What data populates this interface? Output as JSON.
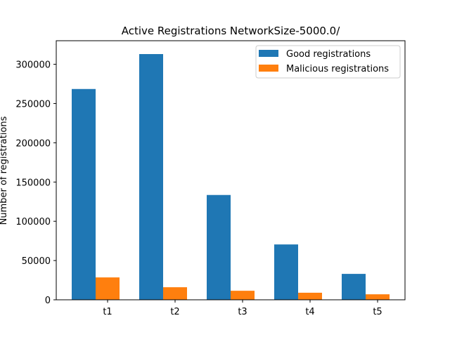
{
  "chart_data": {
    "type": "bar",
    "title": "Active Registrations NetworkSize-5000.0/",
    "xlabel": "",
    "ylabel": "Number of registrations",
    "categories": [
      "t1",
      "t2",
      "t3",
      "t4",
      "t5"
    ],
    "series": [
      {
        "name": "Good registrations",
        "color": "#1f77b4",
        "values": [
          268500,
          313000,
          133500,
          70500,
          33000
        ]
      },
      {
        "name": "Malicious registrations",
        "color": "#ff7f0e",
        "values": [
          28500,
          16000,
          11500,
          9000,
          7000
        ]
      }
    ],
    "ylim": [
      0,
      330000
    ],
    "yticks": [
      0,
      50000,
      100000,
      150000,
      200000,
      250000,
      300000
    ],
    "ytick_labels": [
      "0",
      "50000",
      "100000",
      "150000",
      "200000",
      "250000",
      "300000"
    ],
    "grid": false,
    "legend_position": "top-right"
  }
}
